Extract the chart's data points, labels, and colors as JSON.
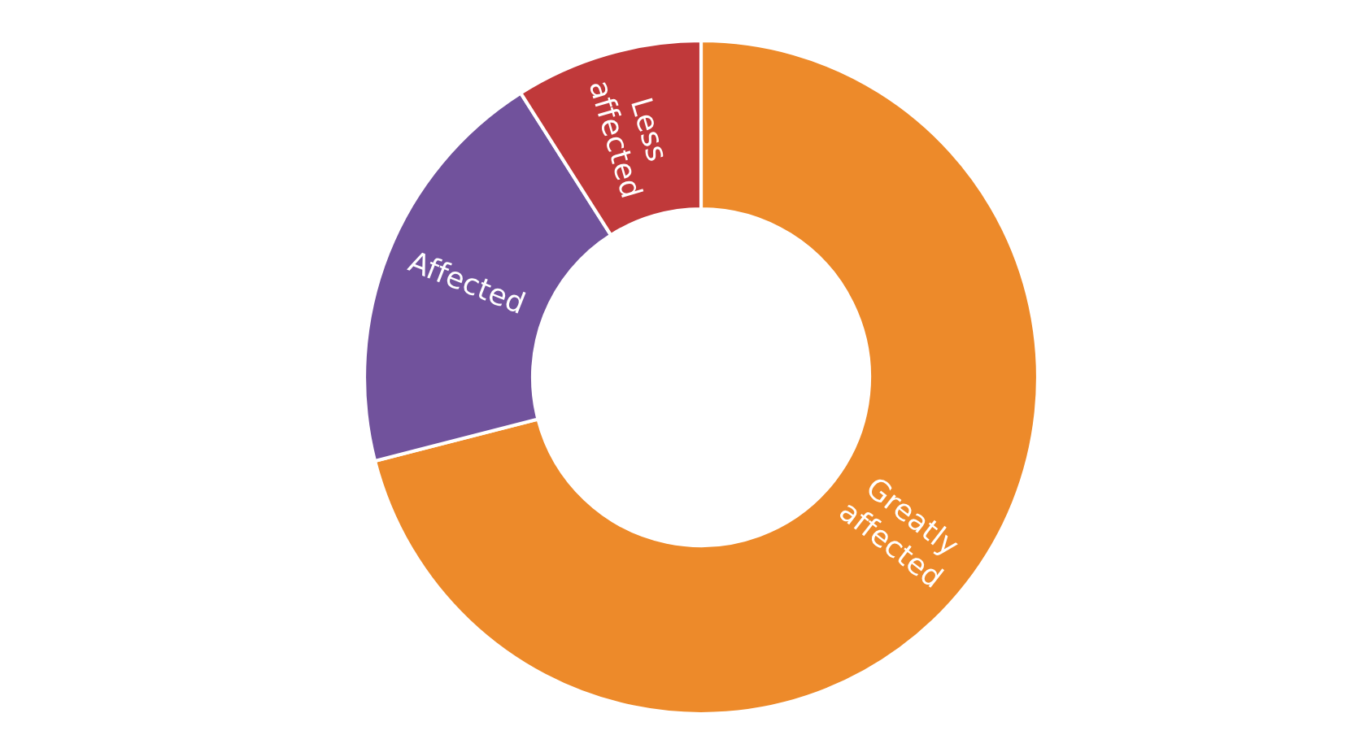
{
  "chart_data": {
    "type": "donut",
    "categories": [
      "Greatly\naffected",
      "Affected",
      "Less\naffected"
    ],
    "values": [
      71,
      20,
      9
    ],
    "colors": [
      "#ed8a2a",
      "#71529c",
      "#c0393a"
    ],
    "legend": false
  }
}
